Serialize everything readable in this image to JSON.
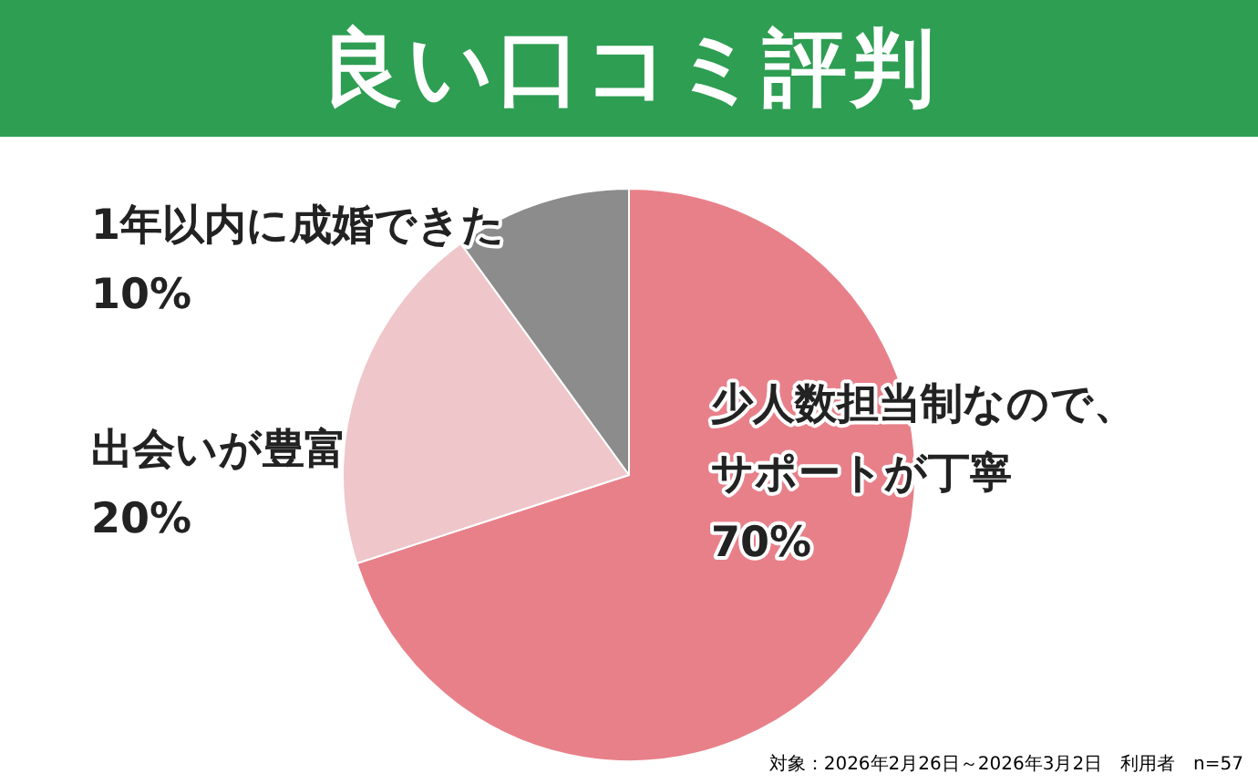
{
  "chart_data": {
    "type": "pie",
    "title": "良い口コミ評判",
    "categories": [
      "少人数担当制なので、サポートが丁寧",
      "出会いが豊富",
      "1年以内に成婚できた"
    ],
    "values": [
      70,
      20,
      10
    ],
    "colors": [
      "#e8808a",
      "#efc6ca",
      "#8c8c8c"
    ],
    "value_labels": [
      "70%",
      "20%",
      "10%"
    ],
    "legend": false,
    "annotations": [
      "対象：2026年2月26日～2026年3月2日　利用者　n=57"
    ]
  }
}
